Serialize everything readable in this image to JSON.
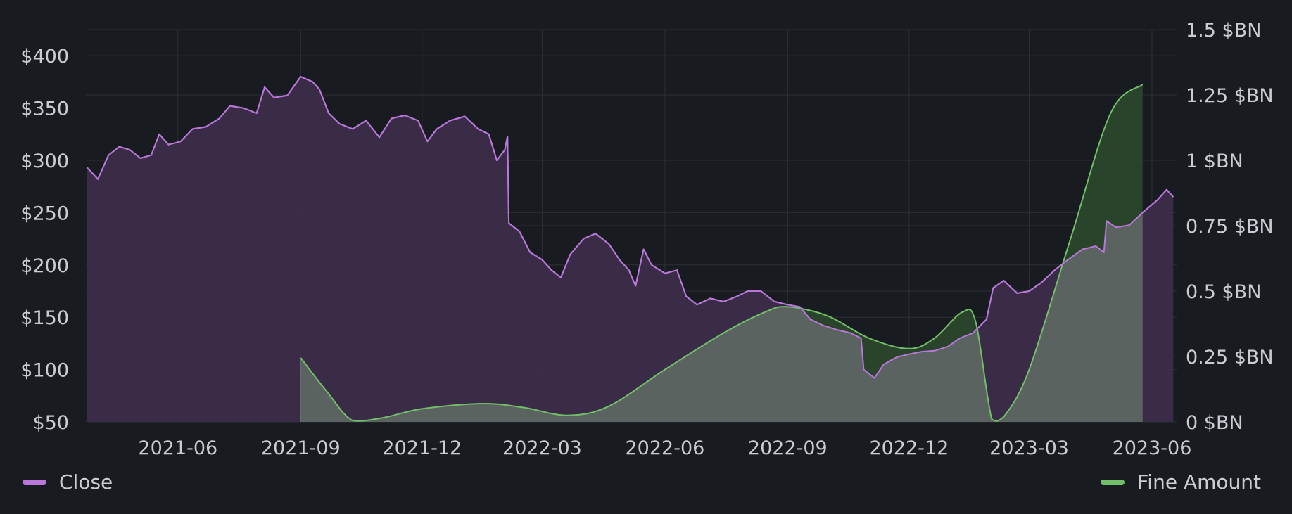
{
  "chart_data": {
    "type": "line",
    "title": "",
    "xlabel": "",
    "ylabel": "",
    "x_ticks": [
      "2021-06",
      "2021-09",
      "2021-12",
      "2022-03",
      "2022-06",
      "2022-09",
      "2022-12",
      "2023-03",
      "2023-06"
    ],
    "xlim": [
      "2021-03-24",
      "2023-06-20"
    ],
    "y_left": {
      "ticks": [
        "$50",
        "$100",
        "$150",
        "$200",
        "$250",
        "$300",
        "$350",
        "$400"
      ],
      "ylim": [
        50,
        425
      ]
    },
    "y_right": {
      "ticks": [
        "0 $BN",
        "0.25 $BN",
        "0.5 $BN",
        "0.75 $BN",
        "1 $BN",
        "1.25 $BN",
        "1.5 $BN"
      ],
      "ylim": [
        0,
        1.5
      ]
    },
    "grid": true,
    "legend_position": "bottom",
    "series": [
      {
        "name": "Close",
        "axis": "left",
        "color": "#b877d9",
        "fill_color": "#3c2d4a",
        "points": [
          [
            "2021-03-25",
            293
          ],
          [
            "2021-04-02",
            282
          ],
          [
            "2021-04-10",
            305
          ],
          [
            "2021-04-18",
            313
          ],
          [
            "2021-04-26",
            310
          ],
          [
            "2021-05-04",
            302
          ],
          [
            "2021-05-12",
            305
          ],
          [
            "2021-05-18",
            325
          ],
          [
            "2021-05-25",
            315
          ],
          [
            "2021-06-03",
            318
          ],
          [
            "2021-06-12",
            330
          ],
          [
            "2021-06-22",
            332
          ],
          [
            "2021-07-02",
            340
          ],
          [
            "2021-07-10",
            352
          ],
          [
            "2021-07-20",
            350
          ],
          [
            "2021-07-30",
            345
          ],
          [
            "2021-08-05",
            370
          ],
          [
            "2021-08-12",
            360
          ],
          [
            "2021-08-22",
            362
          ],
          [
            "2021-09-01",
            380
          ],
          [
            "2021-09-10",
            375
          ],
          [
            "2021-09-15",
            368
          ],
          [
            "2021-09-22",
            345
          ],
          [
            "2021-09-30",
            335
          ],
          [
            "2021-10-10",
            330
          ],
          [
            "2021-10-20",
            338
          ],
          [
            "2021-10-30",
            322
          ],
          [
            "2021-11-08",
            340
          ],
          [
            "2021-11-18",
            343
          ],
          [
            "2021-11-28",
            338
          ],
          [
            "2021-12-05",
            318
          ],
          [
            "2021-12-12",
            330
          ],
          [
            "2021-12-22",
            338
          ],
          [
            "2022-01-02",
            342
          ],
          [
            "2022-01-12",
            330
          ],
          [
            "2022-01-20",
            325
          ],
          [
            "2022-01-26",
            300
          ],
          [
            "2022-02-01",
            310
          ],
          [
            "2022-02-03",
            323
          ],
          [
            "2022-02-04",
            240
          ],
          [
            "2022-02-12",
            232
          ],
          [
            "2022-02-20",
            212
          ],
          [
            "2022-03-01",
            205
          ],
          [
            "2022-03-08",
            195
          ],
          [
            "2022-03-15",
            188
          ],
          [
            "2022-03-22",
            210
          ],
          [
            "2022-04-01",
            225
          ],
          [
            "2022-04-10",
            230
          ],
          [
            "2022-04-20",
            220
          ],
          [
            "2022-04-28",
            205
          ],
          [
            "2022-05-05",
            195
          ],
          [
            "2022-05-10",
            180
          ],
          [
            "2022-05-16",
            215
          ],
          [
            "2022-05-22",
            200
          ],
          [
            "2022-06-01",
            192
          ],
          [
            "2022-06-10",
            195
          ],
          [
            "2022-06-17",
            170
          ],
          [
            "2022-06-25",
            162
          ],
          [
            "2022-07-05",
            168
          ],
          [
            "2022-07-15",
            165
          ],
          [
            "2022-07-25",
            170
          ],
          [
            "2022-08-02",
            175
          ],
          [
            "2022-08-12",
            175
          ],
          [
            "2022-08-22",
            165
          ],
          [
            "2022-09-01",
            162
          ],
          [
            "2022-09-10",
            160
          ],
          [
            "2022-09-18",
            148
          ],
          [
            "2022-09-28",
            142
          ],
          [
            "2022-10-08",
            138
          ],
          [
            "2022-10-18",
            135
          ],
          [
            "2022-10-26",
            130
          ],
          [
            "2022-10-28",
            100
          ],
          [
            "2022-11-05",
            92
          ],
          [
            "2022-11-12",
            105
          ],
          [
            "2022-11-22",
            112
          ],
          [
            "2022-12-02",
            115
          ],
          [
            "2022-12-10",
            117
          ],
          [
            "2022-12-20",
            118
          ],
          [
            "2022-12-30",
            122
          ],
          [
            "2023-01-08",
            130
          ],
          [
            "2023-01-18",
            135
          ],
          [
            "2023-01-28",
            148
          ],
          [
            "2023-02-02",
            178
          ],
          [
            "2023-02-10",
            185
          ],
          [
            "2023-02-20",
            173
          ],
          [
            "2023-03-01",
            175
          ],
          [
            "2023-03-10",
            183
          ],
          [
            "2023-03-20",
            195
          ],
          [
            "2023-03-30",
            205
          ],
          [
            "2023-04-10",
            215
          ],
          [
            "2023-04-20",
            218
          ],
          [
            "2023-04-26",
            212
          ],
          [
            "2023-04-28",
            242
          ],
          [
            "2023-05-05",
            236
          ],
          [
            "2023-05-15",
            238
          ],
          [
            "2023-05-25",
            250
          ],
          [
            "2023-06-05",
            262
          ],
          [
            "2023-06-12",
            272
          ],
          [
            "2023-06-17",
            265
          ]
        ]
      },
      {
        "name": "Fine Amount",
        "axis": "right",
        "color": "#73bf69",
        "fill_color": "#2e4a2e",
        "points": [
          [
            "2021-09-01",
            0.245
          ],
          [
            "2021-09-20",
            0.12
          ],
          [
            "2021-10-10",
            0.005
          ],
          [
            "2021-11-01",
            0.015
          ],
          [
            "2021-12-01",
            0.05
          ],
          [
            "2022-01-15",
            0.07
          ],
          [
            "2022-02-15",
            0.055
          ],
          [
            "2022-03-20",
            0.025
          ],
          [
            "2022-04-20",
            0.06
          ],
          [
            "2022-06-01",
            0.2
          ],
          [
            "2022-07-15",
            0.34
          ],
          [
            "2022-08-15",
            0.42
          ],
          [
            "2022-09-01",
            0.44
          ],
          [
            "2022-10-01",
            0.405
          ],
          [
            "2022-11-01",
            0.32
          ],
          [
            "2022-12-01",
            0.28
          ],
          [
            "2022-12-20",
            0.32
          ],
          [
            "2023-01-10",
            0.42
          ],
          [
            "2023-01-20",
            0.38
          ],
          [
            "2023-02-01",
            0.01
          ],
          [
            "2023-02-10",
            0.02
          ],
          [
            "2023-03-01",
            0.2
          ],
          [
            "2023-04-01",
            0.7
          ],
          [
            "2023-05-01",
            1.18
          ],
          [
            "2023-05-25",
            1.29
          ]
        ]
      }
    ]
  }
}
